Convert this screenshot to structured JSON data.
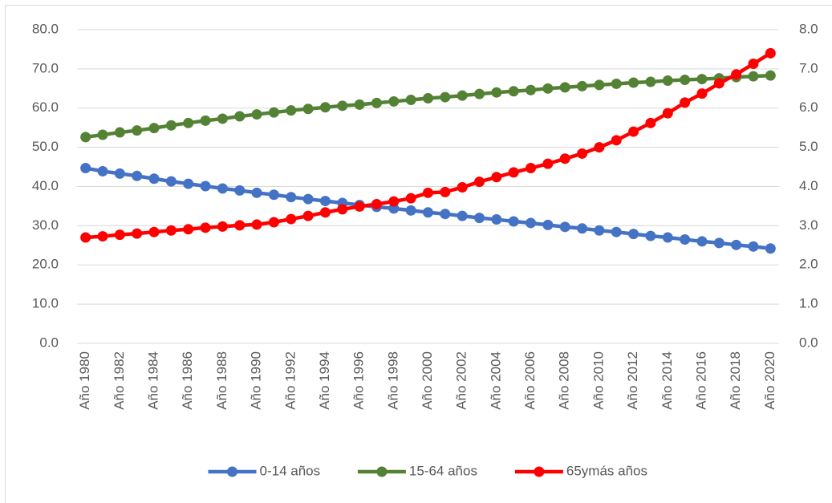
{
  "chart_data": {
    "type": "line",
    "categories": [
      "Año 1980",
      null,
      "Año 1982",
      null,
      "Año 1984",
      null,
      "Año 1986",
      null,
      "Año 1988",
      null,
      "Año 1990",
      null,
      "Año 1992",
      null,
      "Año 1994",
      null,
      "Año 1996",
      null,
      "Año 1998",
      null,
      "Año 2000",
      null,
      "Año 2002",
      null,
      "Año 2004",
      null,
      "Año 2006",
      null,
      "Año 2008",
      null,
      "Año 2010",
      null,
      "Año 2012",
      null,
      "Año 2014",
      null,
      "Año 2016",
      null,
      "Año 2018",
      null,
      "Año 2020"
    ],
    "series": [
      {
        "name": "0-14 años",
        "color": "#4472c4",
        "values": [
          44.7,
          43.9,
          43.3,
          42.7,
          42.0,
          41.3,
          40.7,
          40.1,
          39.5,
          39.0,
          38.4,
          37.9,
          37.3,
          36.8,
          36.3,
          35.8,
          35.3,
          34.8,
          34.4,
          33.9,
          33.4,
          33.0,
          32.5,
          32.0,
          31.6,
          31.1,
          30.7,
          30.2,
          29.7,
          29.3,
          28.8,
          28.4,
          27.9,
          27.4,
          27.0,
          26.5,
          26.0,
          25.6,
          25.1,
          24.7,
          24.2
        ]
      },
      {
        "name": "15-64 años",
        "color": "#548235",
        "values": [
          52.6,
          53.2,
          53.8,
          54.3,
          54.9,
          55.6,
          56.2,
          56.8,
          57.3,
          57.9,
          58.4,
          58.9,
          59.4,
          59.8,
          60.2,
          60.6,
          60.9,
          61.3,
          61.7,
          62.1,
          62.5,
          62.8,
          63.2,
          63.6,
          64.0,
          64.3,
          64.6,
          65.0,
          65.3,
          65.6,
          65.9,
          66.2,
          66.5,
          66.7,
          67.0,
          67.2,
          67.4,
          67.6,
          67.9,
          68.1,
          68.3
        ]
      },
      {
        "name": "65ymás años",
        "color": "#ff0000",
        "axis": "y2",
        "values": [
          2.7,
          2.73,
          2.77,
          2.8,
          2.84,
          2.88,
          2.91,
          2.95,
          2.98,
          3.01,
          3.03,
          3.09,
          3.17,
          3.25,
          3.34,
          3.42,
          3.49,
          3.55,
          3.62,
          3.7,
          3.84,
          3.86,
          3.98,
          4.12,
          4.24,
          4.36,
          4.47,
          4.58,
          4.71,
          4.84,
          5.0,
          5.18,
          5.4,
          5.62,
          5.87,
          6.14,
          6.37,
          6.63,
          6.86,
          7.13,
          7.4
        ]
      }
    ],
    "ylim": [
      0,
      80
    ],
    "yticks": [
      {
        "value": 0,
        "label": "0.0"
      },
      {
        "value": 10,
        "label": "10.0"
      },
      {
        "value": 20,
        "label": "20.0"
      },
      {
        "value": 30,
        "label": "30.0"
      },
      {
        "value": 40,
        "label": "40.0"
      },
      {
        "value": 50,
        "label": "50.0"
      },
      {
        "value": 60,
        "label": "60.0"
      },
      {
        "value": 70,
        "label": "70.0"
      },
      {
        "value": 80,
        "label": "80.0"
      }
    ],
    "y2lim": [
      0,
      8
    ],
    "y2ticks": [
      {
        "value": 0,
        "label": "0.0"
      },
      {
        "value": 1,
        "label": "1.0"
      },
      {
        "value": 2,
        "label": "2.0"
      },
      {
        "value": 3,
        "label": "3.0"
      },
      {
        "value": 4,
        "label": "4.0"
      },
      {
        "value": 5,
        "label": "5.0"
      },
      {
        "value": 6,
        "label": "6.0"
      },
      {
        "value": 7,
        "label": "7.0"
      },
      {
        "value": 8,
        "label": "8.0"
      }
    ],
    "grid": true,
    "legend": "bottom"
  }
}
